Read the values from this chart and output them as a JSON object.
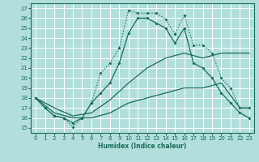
{
  "xlabel": "Humidex (Indice chaleur)",
  "bg_color": "#b2dfdb",
  "grid_color": "#80cbc4",
  "line_color": "#1a6b5a",
  "xlim": [
    -0.5,
    23.5
  ],
  "ylim": [
    14.5,
    27.5
  ],
  "xticks": [
    0,
    1,
    2,
    3,
    4,
    5,
    6,
    7,
    8,
    9,
    10,
    11,
    12,
    13,
    14,
    15,
    16,
    17,
    18,
    19,
    20,
    21,
    22,
    23
  ],
  "yticks": [
    15,
    16,
    17,
    18,
    19,
    20,
    21,
    22,
    23,
    24,
    25,
    26,
    27
  ],
  "line1_x": [
    0,
    1,
    2,
    3,
    4,
    5,
    6,
    7,
    8,
    9,
    10,
    11,
    12,
    13,
    14,
    15,
    16,
    17,
    18,
    19,
    20,
    21,
    22,
    23
  ],
  "line1_y": [
    18,
    17,
    16.2,
    16,
    15.1,
    16.0,
    17.5,
    20.5,
    21.5,
    23.0,
    26.8,
    26.5,
    26.5,
    26.5,
    25.9,
    24.4,
    26.3,
    23.3,
    23.3,
    22.5,
    20.0,
    19.0,
    17.0,
    17.0
  ],
  "line2_x": [
    0,
    1,
    2,
    3,
    4,
    5,
    6,
    7,
    8,
    9,
    10,
    11,
    12,
    13,
    14,
    15,
    16,
    17,
    18,
    19,
    20,
    21,
    22,
    23
  ],
  "line2_y": [
    18,
    17,
    16.2,
    16,
    15.5,
    16.0,
    17.5,
    18.5,
    19.5,
    21.5,
    24.5,
    26.0,
    26.0,
    25.5,
    25.0,
    23.5,
    25.0,
    21.5,
    21.0,
    20.0,
    18.5,
    17.5,
    16.5,
    16.0
  ],
  "line3_x": [
    0,
    2,
    4,
    6,
    8,
    10,
    12,
    14,
    16,
    18,
    20,
    22,
    23
  ],
  "line3_y": [
    18.0,
    17.0,
    16.2,
    16.5,
    17.8,
    19.5,
    21.0,
    22.0,
    22.5,
    22.0,
    22.5,
    22.5,
    22.5
  ],
  "line4_x": [
    0,
    2,
    4,
    6,
    8,
    10,
    12,
    14,
    16,
    18,
    20,
    22,
    23
  ],
  "line4_y": [
    18.0,
    16.5,
    16.0,
    16.0,
    16.5,
    17.5,
    18.0,
    18.5,
    19.0,
    19.0,
    19.5,
    17.0,
    17.0
  ]
}
